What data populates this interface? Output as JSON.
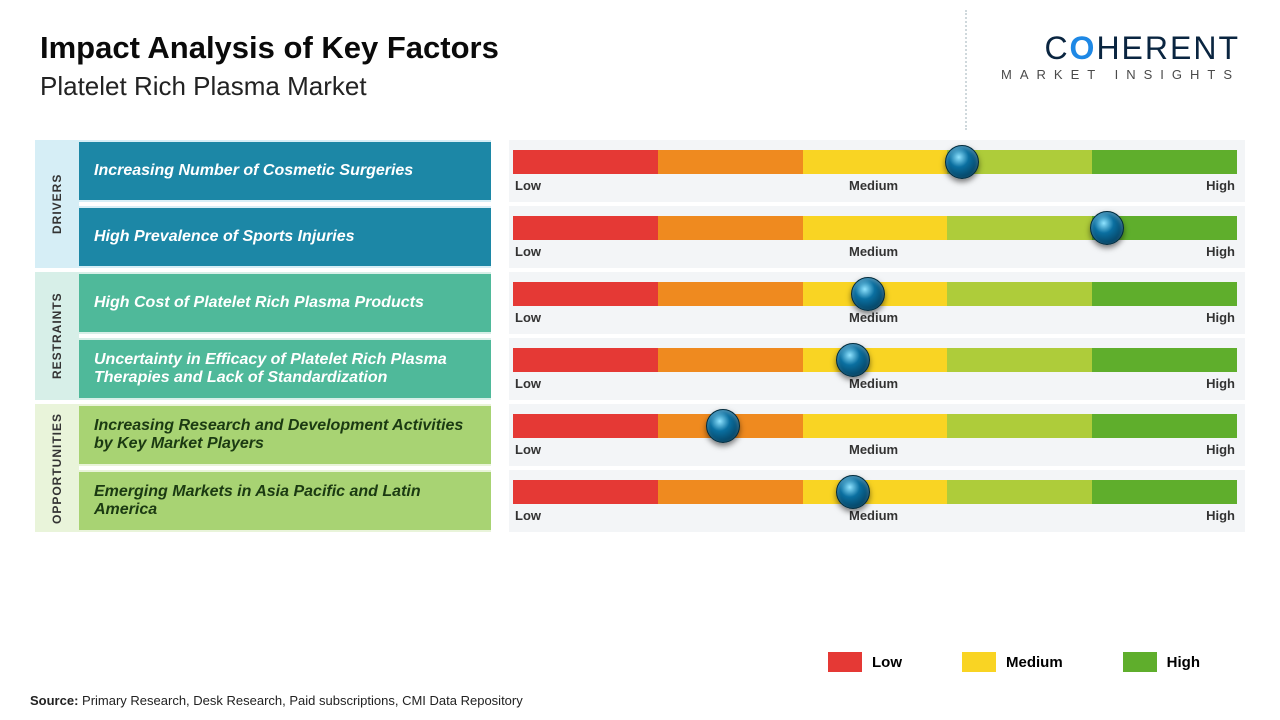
{
  "header": {
    "title": "Impact Analysis of Key Factors",
    "subtitle": "Platelet Rich Plasma Market"
  },
  "logo": {
    "main_pre": "C",
    "main_o": "O",
    "main_post": "HERENT",
    "sub": "MARKET INSIGHTS"
  },
  "slider": {
    "segment_colors": [
      "#e53935",
      "#ef8a1f",
      "#f9d423",
      "#aecc3a",
      "#5fae2c"
    ],
    "labels": {
      "low": "Low",
      "medium": "Medium",
      "high": "High"
    },
    "track_bg": "#f3f5f7"
  },
  "categories": [
    {
      "name": "DRIVERS",
      "tab_bg": "#d6eef6",
      "factor_bg": "#1c87a6",
      "text_color": "#ffffff",
      "factors": [
        {
          "label": "Increasing Number of Cosmetic Surgeries",
          "knob_pct": 62
        },
        {
          "label": "High Prevalence of Sports Injuries",
          "knob_pct": 82
        }
      ]
    },
    {
      "name": "RESTRAINTS",
      "tab_bg": "#d7efe8",
      "factor_bg": "#4fb99a",
      "text_color": "#ffffff",
      "factors": [
        {
          "label": "High Cost of Platelet Rich Plasma Products",
          "knob_pct": 49
        },
        {
          "label": "Uncertainty in Efficacy of Platelet Rich Plasma Therapies and Lack of Standardization",
          "knob_pct": 47
        }
      ]
    },
    {
      "name": "OPPORTUNITIES",
      "tab_bg": "#e9f4da",
      "factor_bg": "#a8d373",
      "text_color": "#1b3a12",
      "factors": [
        {
          "label": "Increasing Research and Development Activities by Key Market Players",
          "knob_pct": 29
        },
        {
          "label": "Emerging Markets in Asia Pacific and Latin America",
          "knob_pct": 47
        }
      ]
    }
  ],
  "legend": {
    "items": [
      {
        "label": "Low",
        "color": "#e53935"
      },
      {
        "label": "Medium",
        "color": "#f9d423"
      },
      {
        "label": "High",
        "color": "#5fae2c"
      }
    ]
  },
  "source": {
    "prefix": "Source:",
    "text": "Primary Research, Desk Research, Paid subscriptions, CMI Data Repository"
  }
}
